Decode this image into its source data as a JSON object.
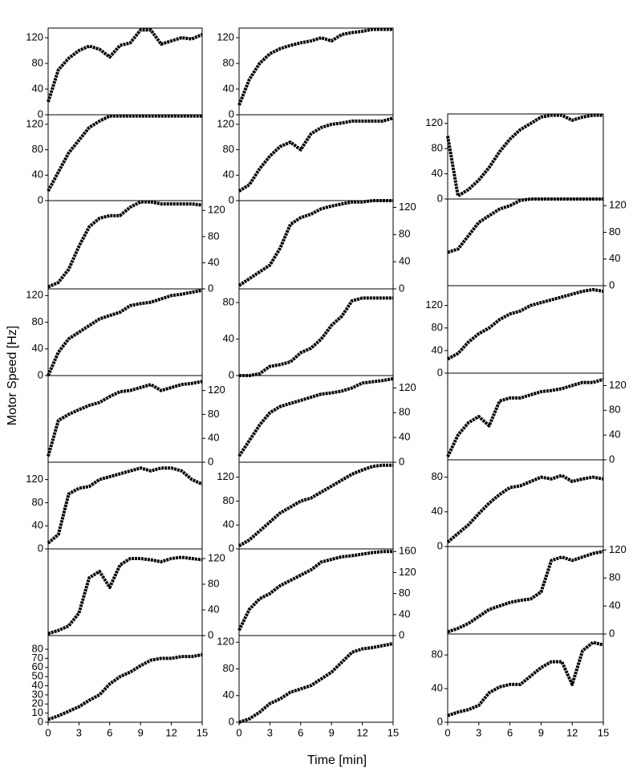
{
  "y_label": "Motor Speed [Hz]",
  "x_label": "Time [min]",
  "chart_data": [
    {
      "type": "scatter",
      "color": "#000000",
      "y_axis_side": "left",
      "xlim": [
        0,
        15
      ],
      "ylim": [
        0,
        135
      ],
      "yticks": [
        0,
        40,
        80,
        120
      ],
      "x": [
        0,
        1,
        2,
        3,
        4,
        5,
        6,
        7,
        8,
        9,
        10,
        11,
        12,
        13,
        14,
        15
      ],
      "values": [
        20,
        70,
        88,
        100,
        107,
        102,
        90,
        108,
        112,
        132,
        132,
        110,
        115,
        120,
        118,
        125
      ]
    },
    {
      "type": "scatter",
      "color": "#000000",
      "y_axis_side": "left",
      "xlim": [
        0,
        15
      ],
      "ylim": [
        0,
        135
      ],
      "yticks": [
        0,
        40,
        80,
        120
      ],
      "x": [
        0,
        1,
        2,
        3,
        4,
        5,
        6,
        7,
        8,
        9,
        10,
        11,
        12,
        13,
        14,
        15
      ],
      "values": [
        15,
        45,
        75,
        95,
        115,
        125,
        133,
        133,
        133,
        133,
        133,
        133,
        133,
        133,
        133,
        133
      ]
    },
    {
      "type": "scatter",
      "color": "#000000",
      "y_axis_side": "right",
      "xlim": [
        0,
        15
      ],
      "ylim": [
        0,
        135
      ],
      "yticks": [
        0,
        40,
        80,
        120
      ],
      "x": [
        0,
        1,
        2,
        3,
        4,
        5,
        6,
        7,
        8,
        9,
        10,
        11,
        12,
        13,
        14,
        15
      ],
      "values": [
        3,
        10,
        30,
        65,
        95,
        108,
        112,
        112,
        125,
        133,
        133,
        130,
        130,
        130,
        130,
        128
      ]
    },
    {
      "type": "scatter",
      "color": "#000000",
      "y_axis_side": "left",
      "xlim": [
        0,
        15
      ],
      "ylim": [
        0,
        130
      ],
      "yticks": [
        0,
        40,
        80,
        120
      ],
      "x": [
        0,
        1,
        2,
        3,
        4,
        5,
        6,
        7,
        8,
        9,
        10,
        11,
        12,
        13,
        14,
        15
      ],
      "values": [
        0,
        35,
        55,
        65,
        75,
        85,
        90,
        95,
        105,
        108,
        110,
        115,
        120,
        122,
        125,
        128
      ]
    },
    {
      "type": "scatter",
      "color": "#000000",
      "y_axis_side": "right",
      "xlim": [
        0,
        15
      ],
      "ylim": [
        0,
        145
      ],
      "yticks": [
        0,
        40,
        80,
        120
      ],
      "x": [
        0,
        1,
        2,
        3,
        4,
        5,
        6,
        7,
        8,
        9,
        10,
        11,
        12,
        13,
        14,
        15
      ],
      "values": [
        10,
        70,
        80,
        88,
        95,
        100,
        110,
        118,
        120,
        125,
        130,
        120,
        125,
        130,
        132,
        135
      ]
    },
    {
      "type": "scatter",
      "color": "#000000",
      "y_axis_side": "left",
      "xlim": [
        0,
        15
      ],
      "ylim": [
        0,
        150
      ],
      "yticks": [
        0,
        40,
        80,
        120
      ],
      "x": [
        0,
        1,
        2,
        3,
        4,
        5,
        6,
        7,
        8,
        9,
        10,
        11,
        12,
        13,
        14,
        15
      ],
      "values": [
        10,
        25,
        95,
        105,
        108,
        120,
        125,
        130,
        135,
        140,
        135,
        140,
        140,
        135,
        120,
        112
      ]
    },
    {
      "type": "scatter",
      "color": "#000000",
      "y_axis_side": "right",
      "xlim": [
        0,
        15
      ],
      "ylim": [
        0,
        135
      ],
      "yticks": [
        0,
        40,
        80,
        120
      ],
      "x": [
        0,
        1,
        2,
        3,
        4,
        5,
        6,
        7,
        8,
        9,
        10,
        11,
        12,
        13,
        14,
        15
      ],
      "values": [
        3,
        8,
        15,
        35,
        90,
        100,
        75,
        110,
        120,
        120,
        118,
        115,
        120,
        122,
        120,
        118
      ]
    },
    {
      "type": "scatter",
      "color": "#000000",
      "y_axis_side": "left",
      "xlim": [
        0,
        15
      ],
      "ylim": [
        0,
        95
      ],
      "yticks": [
        0,
        10,
        20,
        30,
        40,
        50,
        60,
        70,
        80
      ],
      "xticks": [
        0,
        3,
        6,
        9,
        12,
        15
      ],
      "x": [
        0,
        1,
        2,
        3,
        4,
        5,
        6,
        7,
        8,
        9,
        10,
        11,
        12,
        13,
        14,
        15
      ],
      "values": [
        3,
        7,
        12,
        17,
        24,
        30,
        42,
        50,
        55,
        62,
        68,
        70,
        70,
        72,
        72,
        74
      ]
    },
    {
      "type": "scatter",
      "color": "#000000",
      "y_axis_side": "left",
      "xlim": [
        0,
        15
      ],
      "ylim": [
        0,
        135
      ],
      "yticks": [
        0,
        40,
        80,
        120
      ],
      "x": [
        0,
        1,
        2,
        3,
        4,
        5,
        6,
        7,
        8,
        9,
        10,
        11,
        12,
        13,
        14,
        15
      ],
      "values": [
        15,
        55,
        80,
        95,
        103,
        108,
        112,
        115,
        120,
        115,
        125,
        128,
        130,
        133,
        133,
        133
      ]
    },
    {
      "type": "scatter",
      "color": "#000000",
      "y_axis_side": "left",
      "xlim": [
        0,
        15
      ],
      "ylim": [
        0,
        135
      ],
      "yticks": [
        0,
        40,
        80,
        120
      ],
      "x": [
        0,
        1,
        2,
        3,
        4,
        5,
        6,
        7,
        8,
        9,
        10,
        11,
        12,
        13,
        14,
        15
      ],
      "values": [
        15,
        25,
        50,
        70,
        85,
        92,
        80,
        105,
        115,
        120,
        122,
        125,
        125,
        125,
        125,
        130
      ]
    },
    {
      "type": "scatter",
      "color": "#000000",
      "y_axis_side": "right",
      "xlim": [
        0,
        15
      ],
      "ylim": [
        0,
        130
      ],
      "yticks": [
        0,
        40,
        80,
        120
      ],
      "x": [
        0,
        1,
        2,
        3,
        4,
        5,
        6,
        7,
        8,
        9,
        10,
        11,
        12,
        13,
        14,
        15
      ],
      "values": [
        5,
        15,
        25,
        35,
        60,
        95,
        105,
        110,
        118,
        122,
        125,
        128,
        128,
        130,
        130,
        130
      ]
    },
    {
      "type": "scatter",
      "color": "#000000",
      "y_axis_side": "left",
      "xlim": [
        0,
        15
      ],
      "ylim": [
        0,
        95
      ],
      "yticks": [
        0,
        40,
        80
      ],
      "x": [
        0,
        1,
        2,
        3,
        4,
        5,
        6,
        7,
        8,
        9,
        10,
        11,
        12,
        13,
        14,
        15
      ],
      "values": [
        0,
        0,
        2,
        10,
        12,
        15,
        25,
        30,
        40,
        55,
        65,
        82,
        85,
        85,
        85,
        85
      ]
    },
    {
      "type": "scatter",
      "color": "#000000",
      "y_axis_side": "right",
      "xlim": [
        0,
        15
      ],
      "ylim": [
        0,
        140
      ],
      "yticks": [
        0,
        40,
        80,
        120
      ],
      "x": [
        0,
        1,
        2,
        3,
        4,
        5,
        6,
        7,
        8,
        9,
        10,
        11,
        12,
        13,
        14,
        15
      ],
      "values": [
        10,
        35,
        60,
        80,
        90,
        95,
        100,
        105,
        110,
        112,
        115,
        120,
        128,
        130,
        132,
        135
      ]
    },
    {
      "type": "scatter",
      "color": "#000000",
      "y_axis_side": "left",
      "xlim": [
        0,
        15
      ],
      "ylim": [
        0,
        145
      ],
      "yticks": [
        0,
        40,
        80,
        120
      ],
      "x": [
        0,
        1,
        2,
        3,
        4,
        5,
        6,
        7,
        8,
        9,
        10,
        11,
        12,
        13,
        14,
        15
      ],
      "values": [
        5,
        15,
        30,
        45,
        60,
        70,
        80,
        85,
        95,
        105,
        115,
        125,
        132,
        138,
        140,
        140
      ]
    },
    {
      "type": "scatter",
      "color": "#000000",
      "y_axis_side": "right",
      "xlim": [
        0,
        15
      ],
      "ylim": [
        0,
        165
      ],
      "yticks": [
        0,
        40,
        80,
        120,
        160
      ],
      "x": [
        0,
        1,
        2,
        3,
        4,
        5,
        6,
        7,
        8,
        9,
        10,
        11,
        12,
        13,
        14,
        15
      ],
      "values": [
        10,
        50,
        70,
        80,
        95,
        105,
        115,
        125,
        140,
        145,
        150,
        152,
        155,
        158,
        160,
        160
      ]
    },
    {
      "type": "scatter",
      "color": "#000000",
      "y_axis_side": "left",
      "xlim": [
        0,
        15
      ],
      "ylim": [
        0,
        130
      ],
      "yticks": [
        0,
        40,
        80,
        120
      ],
      "xticks": [
        0,
        3,
        6,
        9,
        12,
        15
      ],
      "x": [
        0,
        1,
        2,
        3,
        4,
        5,
        6,
        7,
        8,
        9,
        10,
        11,
        12,
        13,
        14,
        15
      ],
      "values": [
        0,
        5,
        15,
        28,
        35,
        45,
        50,
        55,
        65,
        75,
        90,
        105,
        110,
        112,
        115,
        118
      ]
    },
    {
      "type": "scatter",
      "color": "#000000",
      "y_axis_side": "left",
      "xlim": [
        0,
        15
      ],
      "ylim": [
        0,
        135
      ],
      "yticks": [
        0,
        40,
        80,
        120
      ],
      "x": [
        0,
        1,
        2,
        3,
        4,
        5,
        6,
        7,
        8,
        9,
        10,
        11,
        12,
        13,
        14,
        15
      ],
      "values": [
        100,
        5,
        15,
        30,
        50,
        75,
        95,
        110,
        120,
        130,
        133,
        133,
        125,
        130,
        133,
        133
      ]
    },
    {
      "type": "scatter",
      "color": "#000000",
      "y_axis_side": "right",
      "xlim": [
        0,
        15
      ],
      "ylim": [
        0,
        130
      ],
      "yticks": [
        0,
        40,
        80,
        120
      ],
      "x": [
        0,
        1,
        2,
        3,
        4,
        5,
        6,
        7,
        8,
        9,
        10,
        11,
        12,
        13,
        14,
        15
      ],
      "values": [
        50,
        55,
        75,
        95,
        105,
        115,
        120,
        128,
        130,
        130,
        130,
        130,
        130,
        130,
        130,
        130
      ]
    },
    {
      "type": "scatter",
      "color": "#000000",
      "y_axis_side": "left",
      "xlim": [
        0,
        15
      ],
      "ylim": [
        0,
        155
      ],
      "yticks": [
        0,
        40,
        80,
        120
      ],
      "x": [
        0,
        1,
        2,
        3,
        4,
        5,
        6,
        7,
        8,
        9,
        10,
        11,
        12,
        13,
        14,
        15
      ],
      "values": [
        25,
        35,
        55,
        70,
        80,
        95,
        105,
        110,
        120,
        125,
        130,
        135,
        140,
        145,
        148,
        145
      ]
    },
    {
      "type": "scatter",
      "color": "#000000",
      "y_axis_side": "right",
      "xlim": [
        0,
        15
      ],
      "ylim": [
        0,
        140
      ],
      "yticks": [
        0,
        40,
        80,
        120
      ],
      "x": [
        0,
        1,
        2,
        3,
        4,
        5,
        6,
        7,
        8,
        9,
        10,
        11,
        12,
        13,
        14,
        15
      ],
      "values": [
        5,
        40,
        60,
        70,
        55,
        95,
        100,
        100,
        105,
        110,
        112,
        115,
        120,
        125,
        125,
        130
      ]
    },
    {
      "type": "scatter",
      "color": "#000000",
      "y_axis_side": "left",
      "xlim": [
        0,
        15
      ],
      "ylim": [
        0,
        100
      ],
      "yticks": [
        0,
        40,
        80
      ],
      "x": [
        0,
        1,
        2,
        3,
        4,
        5,
        6,
        7,
        8,
        9,
        10,
        11,
        12,
        13,
        14,
        15
      ],
      "values": [
        5,
        15,
        25,
        38,
        50,
        60,
        68,
        70,
        75,
        80,
        78,
        82,
        75,
        78,
        80,
        78
      ]
    },
    {
      "type": "scatter",
      "color": "#000000",
      "y_axis_side": "right",
      "xlim": [
        0,
        15
      ],
      "ylim": [
        0,
        125
      ],
      "yticks": [
        0,
        40,
        80,
        120
      ],
      "x": [
        0,
        1,
        2,
        3,
        4,
        5,
        6,
        7,
        8,
        9,
        10,
        11,
        12,
        13,
        14,
        15
      ],
      "values": [
        3,
        8,
        15,
        25,
        35,
        40,
        45,
        48,
        50,
        60,
        105,
        110,
        105,
        110,
        115,
        118
      ]
    },
    {
      "type": "scatter",
      "color": "#000000",
      "y_axis_side": "left",
      "xlim": [
        0,
        15
      ],
      "ylim": [
        0,
        105
      ],
      "yticks": [
        0,
        40,
        80
      ],
      "xticks": [
        0,
        3,
        6,
        9,
        12,
        15
      ],
      "x": [
        0,
        1,
        2,
        3,
        4,
        5,
        6,
        7,
        8,
        9,
        10,
        11,
        12,
        13,
        14,
        15
      ],
      "values": [
        8,
        12,
        15,
        20,
        35,
        42,
        45,
        45,
        55,
        65,
        72,
        72,
        45,
        85,
        95,
        92
      ]
    }
  ]
}
